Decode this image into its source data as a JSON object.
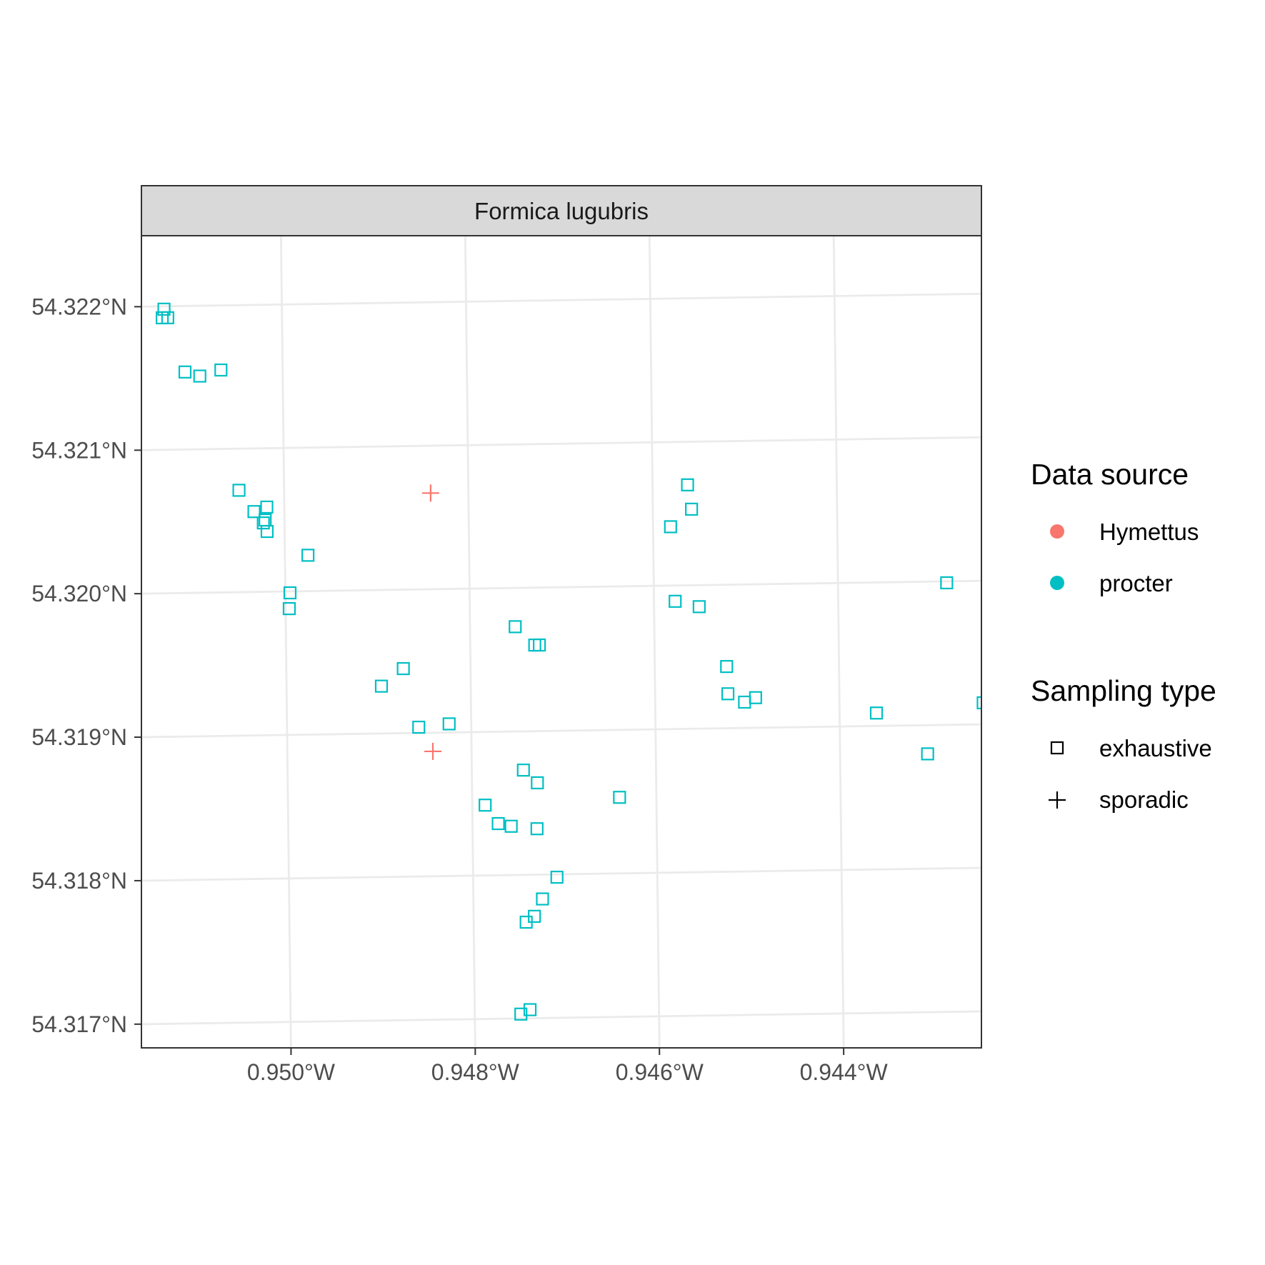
{
  "chart_data": {
    "type": "scatter",
    "title": "",
    "facet_label": "Formica lugubris",
    "xlabel": "",
    "ylabel": "",
    "x_ticks": [
      {
        "value": -0.95,
        "label": "0.950°W"
      },
      {
        "value": -0.948,
        "label": "0.948°W"
      },
      {
        "value": -0.946,
        "label": "0.946°W"
      },
      {
        "value": -0.944,
        "label": "0.944°W"
      }
    ],
    "y_ticks": [
      {
        "value": 54.317,
        "label": "54.317°N"
      },
      {
        "value": 54.318,
        "label": "54.318°N"
      },
      {
        "value": 54.319,
        "label": "54.319°N"
      },
      {
        "value": 54.32,
        "label": "54.320°N"
      },
      {
        "value": 54.321,
        "label": "54.321°N"
      },
      {
        "value": 54.322,
        "label": "54.322°N"
      }
    ],
    "xlim": [
      -0.95157,
      -0.94245
    ],
    "ylim": [
      54.31679,
      54.32245
    ],
    "grid": true,
    "legend_position": "right",
    "legends": [
      {
        "title": "Data source",
        "entries": [
          {
            "label": "Hymettus",
            "color": "#F8766D",
            "shape": "circle"
          },
          {
            "label": "procter",
            "color": "#00BFC4",
            "shape": "circle"
          }
        ]
      },
      {
        "title": "Sampling type",
        "entries": [
          {
            "label": "exhaustive",
            "shape": "square-open"
          },
          {
            "label": "sporadic",
            "shape": "plus"
          }
        ]
      }
    ],
    "series": [
      {
        "name": "procter",
        "color": "#00BFC4",
        "shape": "square-open",
        "points": [
          [
            -0.95128,
            54.32198
          ],
          [
            -0.9513,
            54.32192
          ],
          [
            -0.95124,
            54.32192
          ],
          [
            -0.95106,
            54.32154
          ],
          [
            -0.9509,
            54.32151
          ],
          [
            -0.95067,
            54.32155
          ],
          [
            -0.95049,
            54.32071
          ],
          [
            -0.95033,
            54.32056
          ],
          [
            -0.95019,
            54.32059
          ],
          [
            -0.95021,
            54.3205
          ],
          [
            -0.95023,
            54.32048
          ],
          [
            -0.95019,
            54.32042
          ],
          [
            -0.94975,
            54.32025
          ],
          [
            -0.94995,
            54.31999
          ],
          [
            -0.94996,
            54.31988
          ],
          [
            -0.94873,
            54.31945
          ],
          [
            -0.94897,
            54.31933
          ],
          [
            -0.94857,
            54.31904
          ],
          [
            -0.94824,
            54.31906
          ],
          [
            -0.94751,
            54.31973
          ],
          [
            -0.9473,
            54.3196
          ],
          [
            -0.94725,
            54.3196
          ],
          [
            -0.94744,
            54.31873
          ],
          [
            -0.94729,
            54.31864
          ],
          [
            -0.94786,
            54.31849
          ],
          [
            -0.94772,
            54.31836
          ],
          [
            -0.94758,
            54.31834
          ],
          [
            -0.9473,
            54.31832
          ],
          [
            -0.9464,
            54.31853
          ],
          [
            -0.94709,
            54.31798
          ],
          [
            -0.94725,
            54.31783
          ],
          [
            -0.94734,
            54.31771
          ],
          [
            -0.94743,
            54.31767
          ],
          [
            -0.9474,
            54.31706
          ],
          [
            -0.9475,
            54.31703
          ],
          [
            -0.94562,
            54.3207
          ],
          [
            -0.94558,
            54.32053
          ],
          [
            -0.94581,
            54.32041
          ],
          [
            -0.94577,
            54.31989
          ],
          [
            -0.94551,
            54.31985
          ],
          [
            -0.94522,
            54.31943
          ],
          [
            -0.94521,
            54.31924
          ],
          [
            -0.94503,
            54.31918
          ],
          [
            -0.94491,
            54.31921
          ],
          [
            -0.9436,
            54.31909
          ],
          [
            -0.94305,
            54.3188
          ],
          [
            -0.94282,
            54.31999
          ],
          [
            -0.94244,
            54.31915
          ]
        ]
      },
      {
        "name": "Hymettus",
        "color": "#F8766D",
        "shape": "plus",
        "points": [
          [
            -0.94841,
            54.32067
          ],
          [
            -0.94842,
            54.31887
          ]
        ]
      }
    ]
  }
}
